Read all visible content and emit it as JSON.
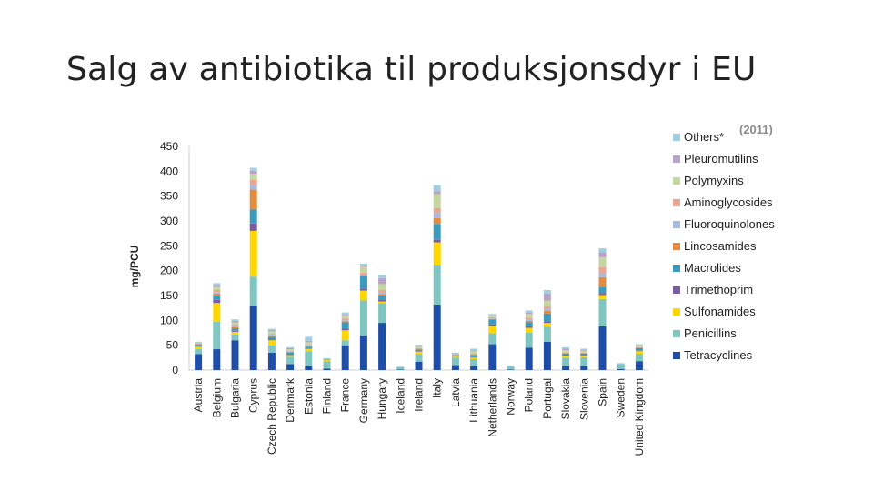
{
  "slide": {
    "title": "Salg av antibiotika til produksjonsdyr i EU"
  },
  "colors": {
    "Tetracyclines": "#1f4ea8",
    "Penicillins": "#7fc5c0",
    "Sulfonamides": "#ffd700",
    "Trimethoprim": "#7b5aa6",
    "Macrolides": "#3b9bbd",
    "Lincosamides": "#e38b3f",
    "Fluoroquinolones": "#a9b8e0",
    "Aminoglycosides": "#e8a592",
    "Polymyxins": "#c5d6a0",
    "Pleuromutilins": "#b8a3c9",
    "Others*": "#9fcfe0"
  },
  "chart_data": {
    "type": "bar",
    "stacked": true,
    "year_label": "(2011)",
    "ylabel": "mg/PCU",
    "xlabel": "",
    "ylim": [
      0,
      450
    ],
    "yticks": [
      0,
      50,
      100,
      150,
      200,
      250,
      300,
      350,
      400,
      450
    ],
    "legend_position": "right",
    "categories": [
      "Austria",
      "Belgium",
      "Bulgaria",
      "Cyprus",
      "Czech Republic",
      "Denmark",
      "Estonia",
      "Finland",
      "France",
      "Germany",
      "Hungary",
      "Iceland",
      "Ireland",
      "Italy",
      "Latvia",
      "Lithuania",
      "Netherlands",
      "Norway",
      "Poland",
      "Portugal",
      "Slovakia",
      "Slovenia",
      "Spain",
      "Sweden",
      "United Kingdom"
    ],
    "series": [
      {
        "name": "Tetracyclines",
        "values": [
          32,
          42,
          60,
          130,
          35,
          12,
          8,
          3,
          50,
          70,
          95,
          1,
          17,
          132,
          10,
          8,
          52,
          1,
          45,
          57,
          8,
          8,
          88,
          2,
          18
        ]
      },
      {
        "name": "Penicillins",
        "values": [
          10,
          55,
          12,
          58,
          15,
          15,
          30,
          15,
          10,
          70,
          40,
          5,
          15,
          80,
          15,
          14,
          22,
          6,
          30,
          30,
          17,
          18,
          55,
          10,
          15
        ]
      },
      {
        "name": "Sulfonamides",
        "values": [
          5,
          38,
          5,
          92,
          10,
          3,
          5,
          2,
          20,
          20,
          3,
          0,
          5,
          45,
          2,
          3,
          15,
          0,
          10,
          8,
          3,
          3,
          8,
          0,
          5
        ]
      },
      {
        "name": "Trimethoprim",
        "values": [
          1,
          6,
          2,
          15,
          2,
          1,
          1,
          0,
          4,
          4,
          4,
          0,
          1,
          5,
          0,
          1,
          3,
          0,
          3,
          2,
          1,
          1,
          4,
          0,
          1
        ]
      },
      {
        "name": "Macrolides",
        "values": [
          3,
          8,
          5,
          28,
          5,
          4,
          3,
          1,
          12,
          25,
          8,
          0,
          3,
          32,
          2,
          4,
          10,
          0,
          8,
          17,
          4,
          3,
          12,
          0,
          5
        ]
      },
      {
        "name": "Lincosamides",
        "values": [
          1,
          5,
          2,
          40,
          2,
          2,
          1,
          0,
          2,
          2,
          3,
          0,
          1,
          12,
          1,
          1,
          1,
          0,
          3,
          5,
          1,
          1,
          20,
          0,
          1
        ]
      },
      {
        "name": "Fluoroquinolones",
        "values": [
          1,
          3,
          3,
          10,
          2,
          1,
          2,
          0,
          2,
          2,
          3,
          0,
          1,
          10,
          1,
          1,
          1,
          0,
          3,
          4,
          1,
          1,
          8,
          0,
          1
        ]
      },
      {
        "name": "Aminoglycosides",
        "values": [
          1,
          4,
          3,
          10,
          2,
          1,
          1,
          0,
          4,
          3,
          5,
          0,
          1,
          10,
          1,
          1,
          2,
          0,
          3,
          5,
          1,
          1,
          12,
          0,
          1
        ]
      },
      {
        "name": "Polymyxins",
        "values": [
          2,
          6,
          4,
          12,
          5,
          3,
          5,
          1,
          6,
          12,
          12,
          0,
          4,
          28,
          1,
          5,
          3,
          1,
          8,
          12,
          4,
          3,
          20,
          0,
          2
        ]
      },
      {
        "name": "Pleuromutilins",
        "values": [
          0,
          4,
          3,
          6,
          3,
          2,
          3,
          0,
          2,
          3,
          12,
          0,
          1,
          6,
          1,
          2,
          1,
          0,
          3,
          14,
          3,
          2,
          10,
          0,
          1
        ]
      },
      {
        "name": "Others*",
        "values": [
          1,
          4,
          3,
          6,
          2,
          2,
          8,
          2,
          4,
          3,
          7,
          1,
          2,
          12,
          1,
          3,
          3,
          1,
          4,
          7,
          3,
          2,
          8,
          2,
          2
        ]
      }
    ]
  }
}
